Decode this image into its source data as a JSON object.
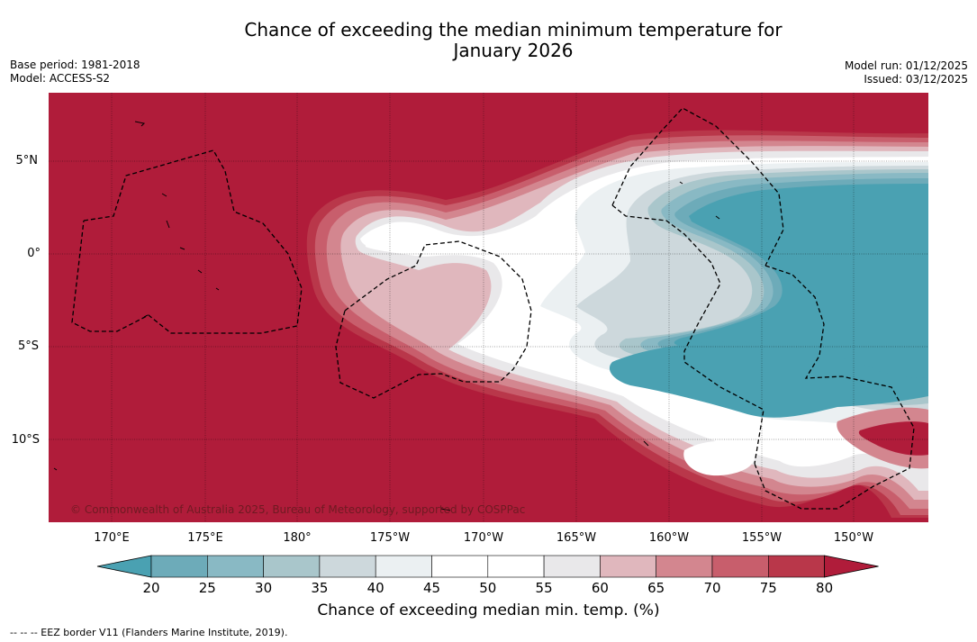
{
  "title_line1": "Chance of exceeding the median minimum temperature for",
  "title_line2": "January 2026",
  "base_period": "Base period: 1981-2018",
  "model": "Model: ACCESS-S2",
  "model_run": "Model run: 01/12/2025",
  "issued": "Issued: 03/12/2025",
  "lat_labels": [
    "5°N",
    "0°",
    "5°S",
    "10°S"
  ],
  "lon_labels": [
    "170°E",
    "175°E",
    "180°",
    "175°W",
    "170°W",
    "165°W",
    "160°W",
    "155°W",
    "150°W"
  ],
  "credit": "© Commonwealth of Australia 2025, Bureau of Meteorology, supported by COSPPac",
  "colorbar": {
    "ticks": [
      "20",
      "25",
      "30",
      "35",
      "40",
      "45",
      "50",
      "55",
      "60",
      "65",
      "70",
      "75",
      "80"
    ],
    "colors": [
      "#4aa1b2",
      "#6dabb9",
      "#89b9c4",
      "#a9c6cb",
      "#cdd8dc",
      "#ebf0f2",
      "#ffffff",
      "#ffffff",
      "#e9e8ea",
      "#e0b7bd",
      "#d3868f",
      "#c85e6c",
      "#b9374a",
      "#b01c3a"
    ],
    "label": "Chance of exceeding median min. temp. (%)"
  },
  "footer": "--  --  -- EEZ border V11 (Flanders Marine Institute, 2019)."
}
